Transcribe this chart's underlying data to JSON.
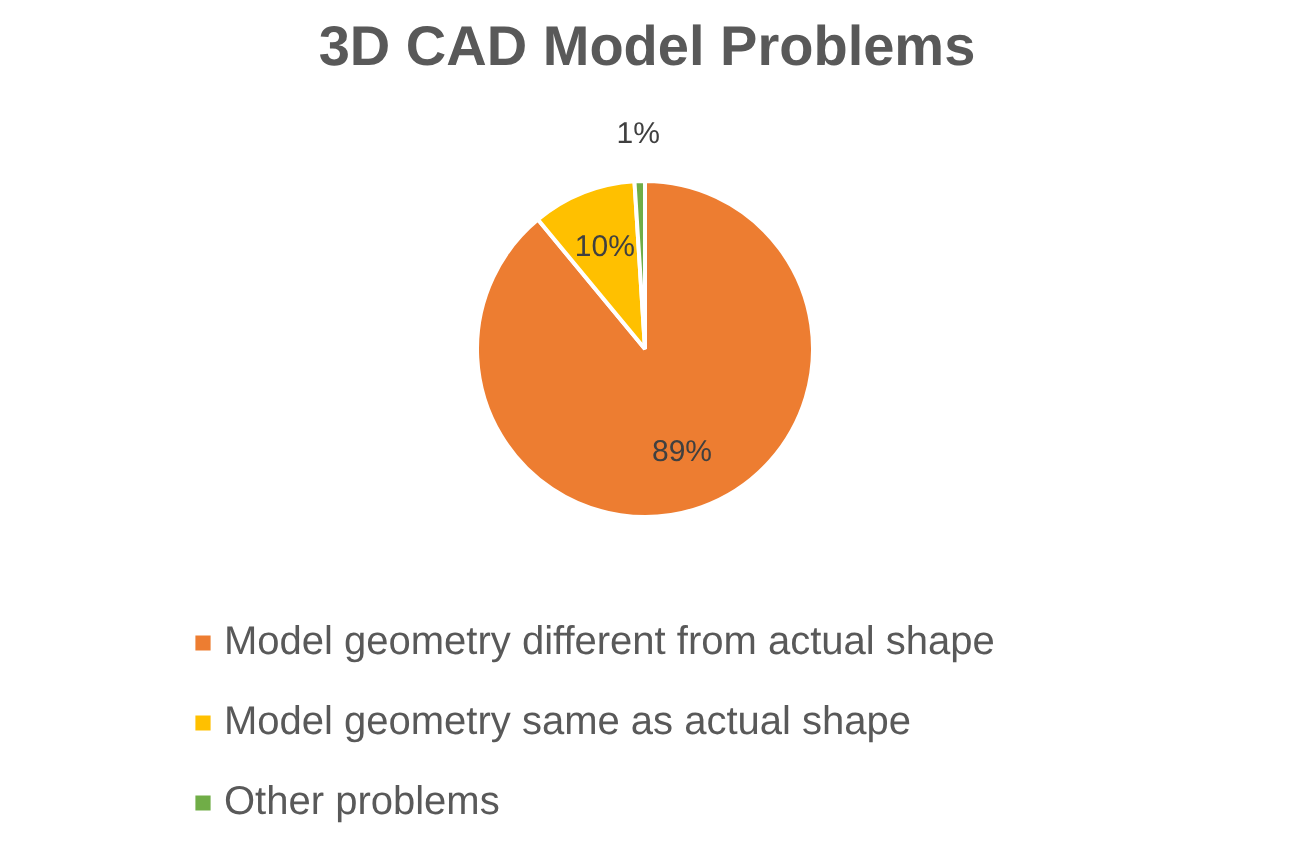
{
  "chart_data": {
    "type": "pie",
    "title": "3D CAD Model Problems",
    "categories": [
      "Model geometry different from actual shape",
      "Model geometry same as actual shape",
      "Other problems"
    ],
    "values": [
      89,
      10,
      1
    ],
    "colors": [
      "#ed7d31",
      "#ffc000",
      "#70ad47"
    ],
    "value_labels": [
      "89%",
      "10%",
      "1%"
    ],
    "legend": "bottom"
  }
}
